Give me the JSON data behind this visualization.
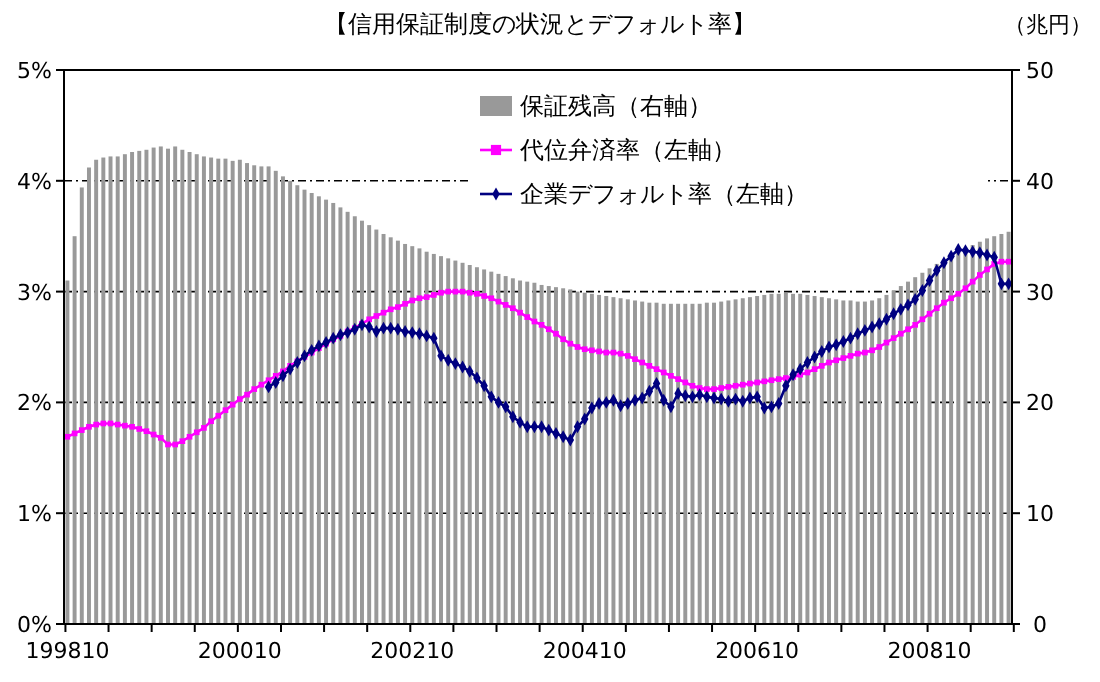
{
  "chart_data": {
    "type": "bar",
    "title": "【信用保証制度の状況とデフォルト率】",
    "y2label": "（兆円）",
    "categories": [
      "199810",
      null,
      null,
      null,
      null,
      null,
      null,
      null,
      null,
      null,
      null,
      null,
      null,
      null,
      null,
      null,
      null,
      null,
      null,
      null,
      null,
      null,
      null,
      null,
      "200010",
      null,
      null,
      null,
      null,
      null,
      null,
      null,
      null,
      null,
      null,
      null,
      null,
      null,
      null,
      null,
      null,
      null,
      null,
      null,
      null,
      null,
      null,
      null,
      "200210",
      null,
      null,
      null,
      null,
      null,
      null,
      null,
      null,
      null,
      null,
      null,
      null,
      null,
      null,
      null,
      null,
      null,
      null,
      null,
      null,
      null,
      null,
      null,
      "200410",
      null,
      null,
      null,
      null,
      null,
      null,
      null,
      null,
      null,
      null,
      null,
      null,
      null,
      null,
      null,
      null,
      null,
      null,
      null,
      null,
      null,
      null,
      null,
      "200610",
      null,
      null,
      null,
      null,
      null,
      null,
      null,
      null,
      null,
      null,
      null,
      null,
      null,
      null,
      null,
      null,
      null,
      null,
      null,
      null,
      null,
      null,
      null,
      "200810",
      null,
      null,
      null,
      null,
      null,
      null,
      null,
      null,
      null,
      null,
      null
    ],
    "series": [
      {
        "name": "保証残高（右軸）",
        "axis": "y2",
        "color": "#999999",
        "values": [
          31.0,
          35.0,
          39.4,
          41.2,
          41.9,
          42.1,
          42.2,
          42.2,
          42.4,
          42.6,
          42.7,
          42.8,
          43.0,
          43.1,
          42.9,
          43.1,
          42.8,
          42.6,
          42.4,
          42.2,
          42.1,
          42.0,
          42.0,
          41.8,
          41.9,
          41.6,
          41.4,
          41.3,
          41.3,
          40.9,
          40.4,
          40.0,
          39.6,
          39.2,
          38.9,
          38.6,
          38.3,
          38.0,
          37.6,
          37.2,
          36.8,
          36.4,
          36.0,
          35.6,
          35.2,
          34.9,
          34.6,
          34.3,
          34.1,
          33.9,
          33.6,
          33.4,
          33.2,
          33.0,
          32.8,
          32.6,
          32.4,
          32.2,
          32.0,
          31.8,
          31.6,
          31.4,
          31.2,
          31.0,
          30.9,
          30.8,
          30.6,
          30.5,
          30.4,
          30.3,
          30.2,
          30.0,
          29.9,
          29.8,
          29.7,
          29.6,
          29.5,
          29.4,
          29.3,
          29.2,
          29.1,
          29.0,
          29.0,
          28.9,
          28.9,
          28.9,
          28.9,
          28.9,
          28.9,
          29.0,
          29.0,
          29.1,
          29.2,
          29.3,
          29.4,
          29.5,
          29.6,
          29.7,
          29.8,
          29.8,
          29.9,
          29.8,
          29.8,
          29.7,
          29.6,
          29.5,
          29.4,
          29.3,
          29.2,
          29.2,
          29.1,
          29.1,
          29.2,
          29.4,
          29.7,
          30.1,
          30.5,
          30.9,
          31.3,
          31.7,
          32.1,
          32.5,
          32.9,
          33.3,
          33.6,
          33.9,
          34.2,
          34.5,
          34.8,
          35.0,
          35.2,
          35.4
        ]
      },
      {
        "name": "代位弁済率（左軸）",
        "type": "line",
        "marker": "square",
        "line_style": "solid",
        "color": "#ff00ff",
        "values": [
          1.69,
          1.72,
          1.75,
          1.78,
          1.8,
          1.81,
          1.81,
          1.8,
          1.79,
          1.78,
          1.76,
          1.74,
          1.71,
          1.68,
          1.62,
          1.62,
          1.65,
          1.69,
          1.73,
          1.77,
          1.83,
          1.88,
          1.93,
          1.98,
          2.03,
          2.07,
          2.12,
          2.16,
          2.2,
          2.24,
          2.28,
          2.33,
          2.37,
          2.41,
          2.45,
          2.49,
          2.53,
          2.57,
          2.6,
          2.64,
          2.67,
          2.71,
          2.75,
          2.78,
          2.81,
          2.84,
          2.86,
          2.89,
          2.92,
          2.94,
          2.95,
          2.97,
          2.99,
          3.0,
          3.0,
          3.0,
          2.99,
          2.98,
          2.96,
          2.94,
          2.91,
          2.88,
          2.85,
          2.81,
          2.77,
          2.73,
          2.7,
          2.66,
          2.62,
          2.57,
          2.53,
          2.5,
          2.48,
          2.47,
          2.46,
          2.45,
          2.45,
          2.44,
          2.42,
          2.39,
          2.36,
          2.33,
          2.3,
          2.27,
          2.24,
          2.21,
          2.18,
          2.15,
          2.13,
          2.12,
          2.12,
          2.13,
          2.14,
          2.15,
          2.16,
          2.17,
          2.18,
          2.19,
          2.2,
          2.21,
          2.22,
          2.23,
          2.25,
          2.27,
          2.3,
          2.33,
          2.36,
          2.38,
          2.4,
          2.42,
          2.44,
          2.45,
          2.47,
          2.5,
          2.54,
          2.58,
          2.62,
          2.66,
          2.7,
          2.75,
          2.8,
          2.85,
          2.9,
          2.94,
          2.98,
          3.03,
          3.09,
          3.15,
          3.2,
          3.25,
          3.27,
          3.27
        ]
      },
      {
        "name": "企業デフォルト率（左軸）",
        "type": "line",
        "marker": "diamond",
        "line_style": "solid",
        "color": "#000080",
        "values": [
          null,
          null,
          null,
          null,
          null,
          null,
          null,
          null,
          null,
          null,
          null,
          null,
          null,
          null,
          null,
          null,
          null,
          null,
          null,
          null,
          null,
          null,
          null,
          null,
          null,
          null,
          null,
          null,
          2.14,
          2.18,
          2.24,
          2.3,
          2.36,
          2.42,
          2.47,
          2.51,
          2.54,
          2.58,
          2.61,
          2.63,
          2.66,
          2.7,
          2.68,
          2.64,
          2.67,
          2.67,
          2.66,
          2.64,
          2.63,
          2.62,
          2.6,
          2.58,
          2.42,
          2.38,
          2.35,
          2.32,
          2.28,
          2.22,
          2.15,
          2.05,
          2.0,
          1.96,
          1.87,
          1.82,
          1.78,
          1.78,
          1.78,
          1.75,
          1.72,
          1.69,
          1.66,
          1.78,
          1.85,
          1.95,
          1.99,
          2.0,
          2.02,
          1.97,
          1.99,
          2.02,
          2.04,
          2.1,
          2.17,
          2.02,
          1.96,
          2.08,
          2.06,
          2.05,
          2.07,
          2.05,
          2.04,
          2.03,
          2.01,
          2.03,
          2.01,
          2.04,
          2.05,
          1.95,
          1.96,
          1.99,
          2.15,
          2.25,
          2.3,
          2.36,
          2.41,
          2.46,
          2.5,
          2.52,
          2.55,
          2.58,
          2.62,
          2.65,
          2.68,
          2.71,
          2.75,
          2.8,
          2.84,
          2.88,
          2.93,
          3.01,
          3.1,
          3.19,
          3.26,
          3.32,
          3.38,
          3.37,
          3.36,
          3.35,
          3.33,
          3.31,
          3.07,
          3.07
        ]
      }
    ],
    "ylim": [
      0,
      5
    ],
    "yticks": [
      {
        "value": 0,
        "label": "0%"
      },
      {
        "value": 1,
        "label": "1%"
      },
      {
        "value": 2,
        "label": "2%"
      },
      {
        "value": 3,
        "label": "3%"
      },
      {
        "value": 4,
        "label": "4%"
      },
      {
        "value": 5,
        "label": "5%"
      }
    ],
    "y2lim": [
      0,
      50
    ],
    "y2ticks": [
      0,
      10,
      20,
      30,
      40,
      50
    ],
    "grid": "y",
    "legend": "top right"
  }
}
